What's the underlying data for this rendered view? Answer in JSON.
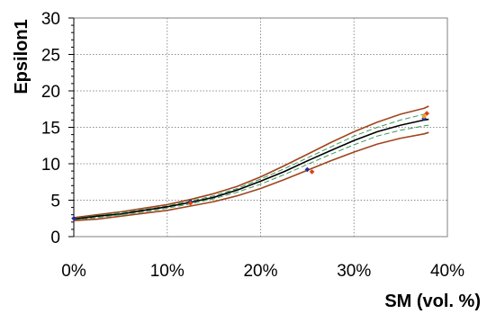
{
  "chart_data": {
    "type": "line",
    "title": "",
    "xlabel": "SM (vol. %)",
    "ylabel": "Epsilon1",
    "xlim": [
      0,
      40
    ],
    "ylim": [
      0,
      30
    ],
    "x_ticks": [
      0,
      10,
      20,
      30,
      40
    ],
    "x_tick_labels": [
      "0%",
      "10%",
      "20%",
      "30%",
      "40%"
    ],
    "y_ticks": [
      0,
      5,
      10,
      15,
      20,
      25,
      30
    ],
    "y_tick_labels": [
      "0",
      "5",
      "10",
      "15",
      "20",
      "25",
      "30"
    ],
    "grid": true,
    "x": [
      0,
      2.5,
      5,
      7.5,
      10,
      12.5,
      15,
      17.5,
      20,
      22.5,
      25,
      27.5,
      30,
      32.5,
      35,
      37.5,
      38
    ],
    "series": [
      {
        "style": "solid",
        "color": "#a0441c",
        "values": [
          2.6,
          3.0,
          3.4,
          3.9,
          4.4,
          5.1,
          5.9,
          6.9,
          8.2,
          9.7,
          11.3,
          12.9,
          14.4,
          15.7,
          16.8,
          17.6,
          17.9
        ]
      },
      {
        "style": "dashed",
        "color": "#3a9a5a",
        "values": [
          2.5,
          2.9,
          3.3,
          3.7,
          4.2,
          4.9,
          5.6,
          6.6,
          7.9,
          9.3,
          10.8,
          12.3,
          13.8,
          15.0,
          16.0,
          16.8,
          17.0
        ]
      },
      {
        "style": "solid",
        "color": "#000000",
        "values": [
          2.4,
          2.8,
          3.1,
          3.6,
          4.1,
          4.7,
          5.4,
          6.4,
          7.6,
          8.9,
          10.4,
          11.8,
          13.2,
          14.4,
          15.3,
          16.0,
          16.1
        ]
      },
      {
        "style": "dashed",
        "color": "#3a9a5a",
        "values": [
          2.3,
          2.6,
          3.0,
          3.4,
          3.9,
          4.5,
          5.2,
          6.1,
          7.2,
          8.5,
          9.9,
          11.3,
          12.6,
          13.8,
          14.6,
          15.2,
          15.3
        ]
      },
      {
        "style": "solid",
        "color": "#a0441c",
        "values": [
          2.2,
          2.4,
          2.8,
          3.2,
          3.6,
          4.2,
          4.8,
          5.6,
          6.6,
          7.8,
          9.1,
          10.4,
          11.6,
          12.7,
          13.5,
          14.1,
          14.3
        ]
      }
    ],
    "points": [
      {
        "x": 0,
        "y": 2.5,
        "color": "#1f2fa0"
      },
      {
        "x": 12.5,
        "y": 4.8,
        "color": "#1f2fa0"
      },
      {
        "x": 12.5,
        "y": 4.6,
        "color": "#e04010"
      },
      {
        "x": 25,
        "y": 9.2,
        "color": "#1f2fa0"
      },
      {
        "x": 25.5,
        "y": 8.9,
        "color": "#e04010"
      },
      {
        "x": 37.5,
        "y": 16.2,
        "color": "#1f2fa0"
      },
      {
        "x": 37.8,
        "y": 16.9,
        "color": "#e04010"
      },
      {
        "x": 37.5,
        "y": 16.5,
        "color": "#f0a020"
      }
    ]
  }
}
